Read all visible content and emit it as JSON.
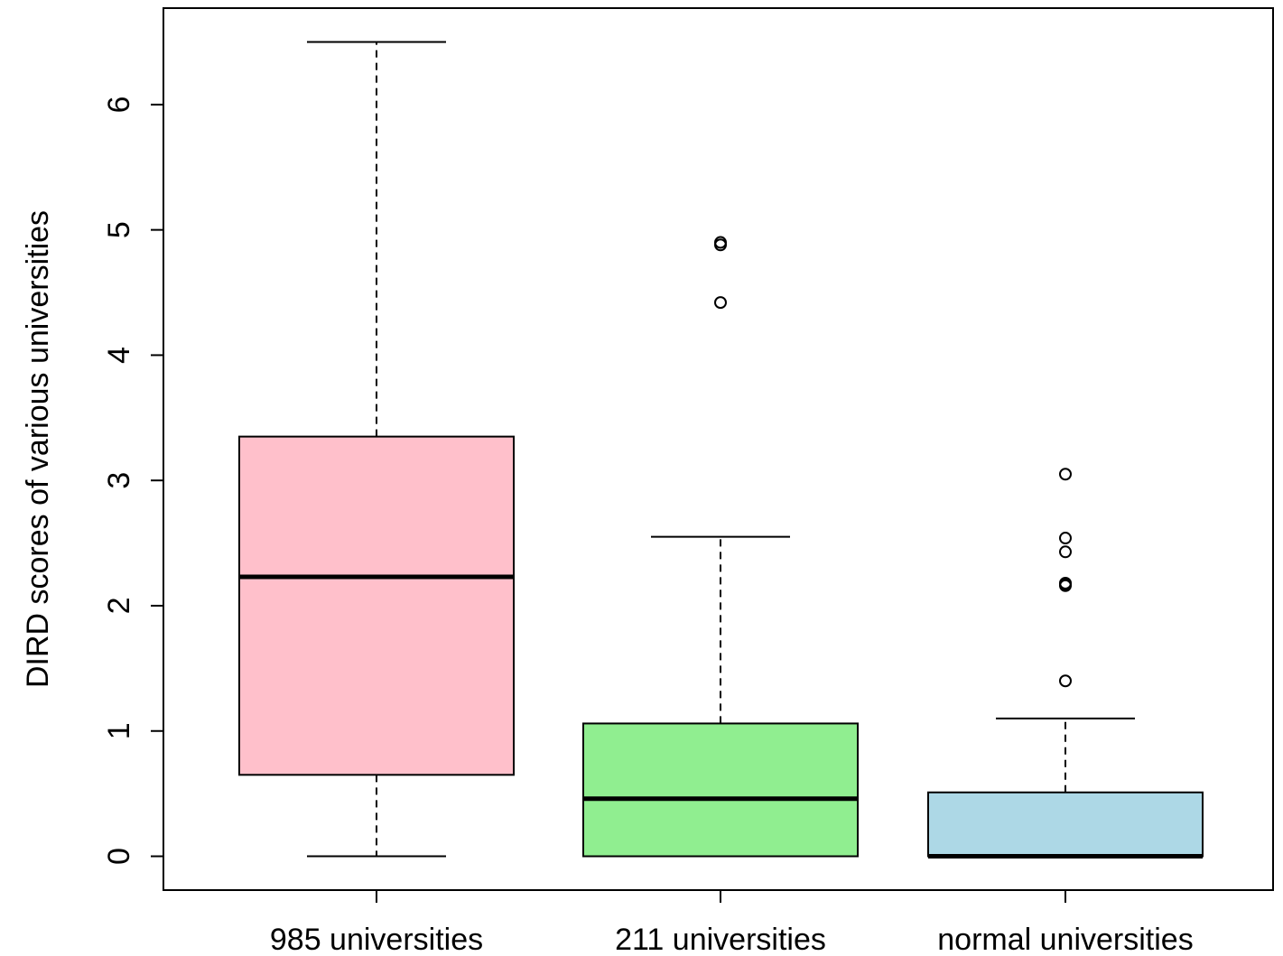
{
  "chart_data": {
    "type": "boxplot",
    "title": "",
    "xlabel": "",
    "ylabel": "DIRD scores of various universities",
    "ylim": [
      -0.27,
      6.77
    ],
    "yticks": [
      "0",
      "1",
      "2",
      "3",
      "4",
      "5",
      "6"
    ],
    "grid": false,
    "legend": "none",
    "categories": [
      "985 universities",
      "211 universities",
      "normal universities"
    ],
    "series": [
      {
        "color": "#FFC0CB",
        "whisker_low": 0.0,
        "q1": 0.65,
        "median": 2.23,
        "q3": 3.35,
        "whisker_high": 6.5,
        "outliers": []
      },
      {
        "color": "#90EE90",
        "whisker_low": 0.0,
        "q1": 0.0,
        "median": 0.46,
        "q3": 1.06,
        "whisker_high": 2.55,
        "outliers": [
          4.42,
          4.88,
          4.9
        ]
      },
      {
        "color": "#ADD8E6",
        "whisker_low": 0.0,
        "q1": 0.0,
        "median": 0.0,
        "q3": 0.51,
        "whisker_high": 1.1,
        "outliers": [
          1.4,
          2.16,
          2.17,
          2.18,
          2.43,
          2.54,
          3.05
        ]
      }
    ]
  }
}
